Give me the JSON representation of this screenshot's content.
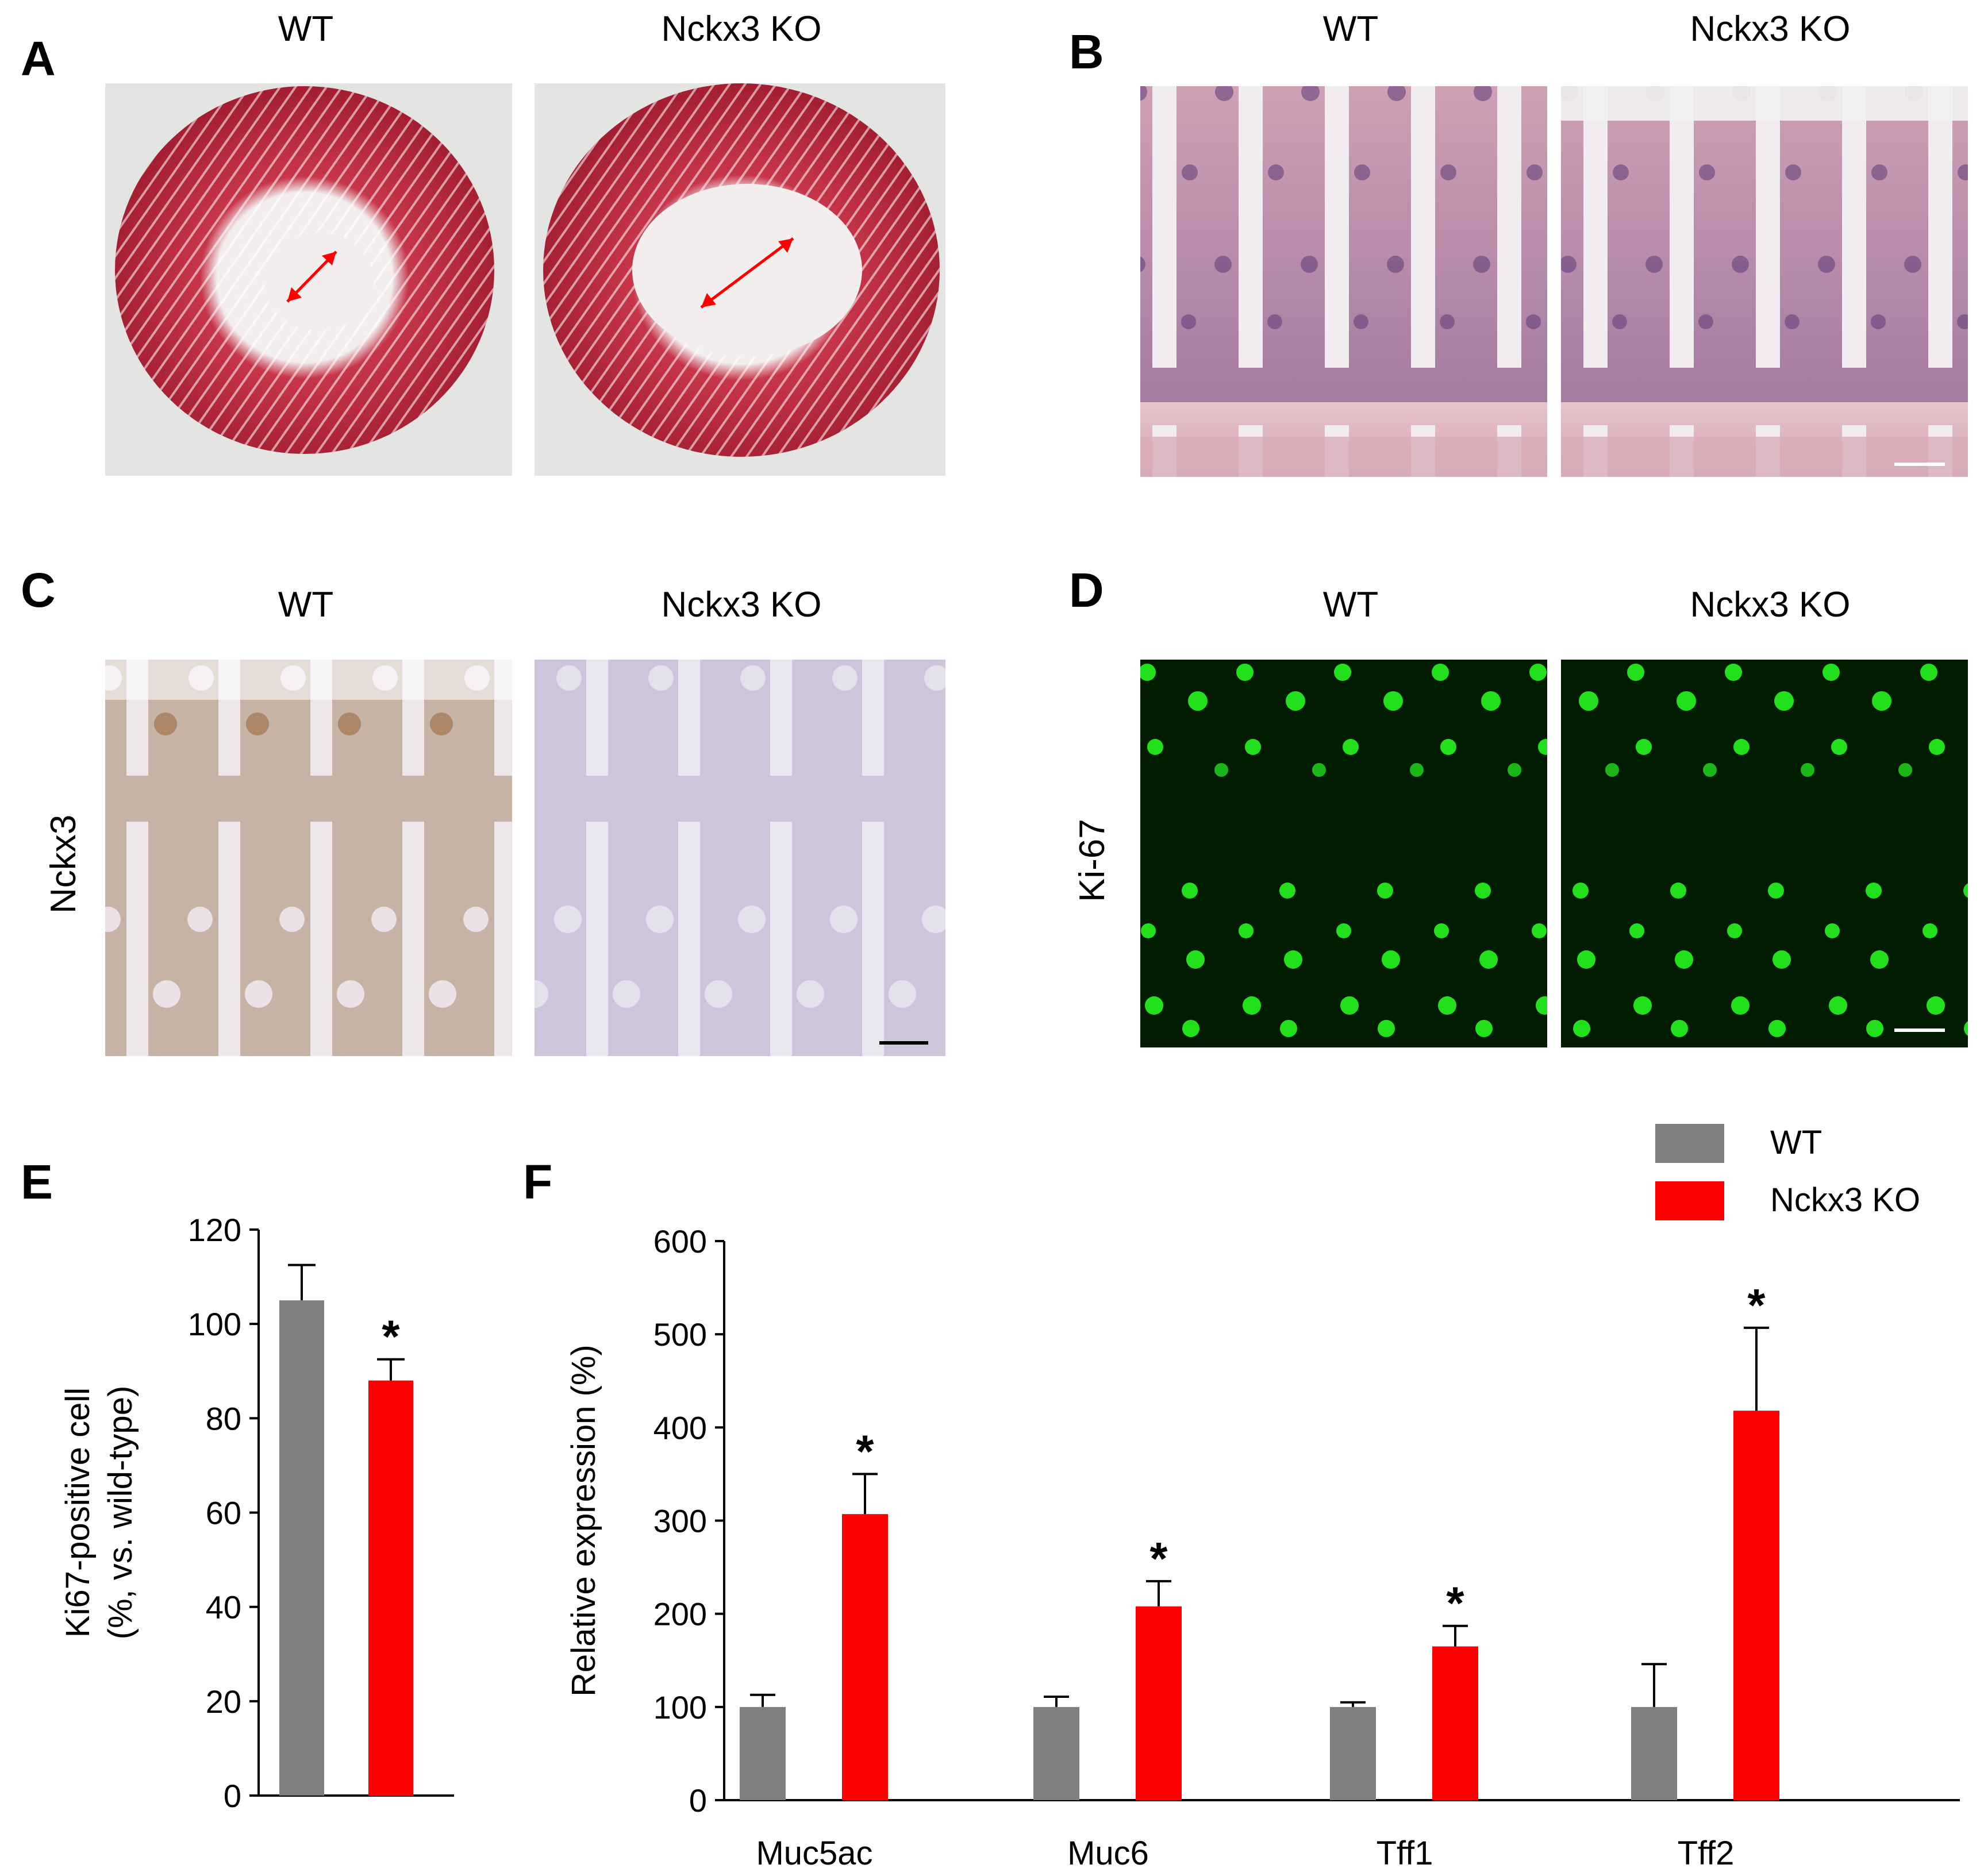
{
  "panels": {
    "A": {
      "letter": "A",
      "left_label": "WT",
      "right_label": "Nckx3 KO"
    },
    "B": {
      "letter": "B",
      "left_label": "WT",
      "right_label": "Nckx3 KO"
    },
    "C": {
      "letter": "C",
      "left_label": "WT",
      "right_label": "Nckx3 KO",
      "row_label": "Nckx3"
    },
    "D": {
      "letter": "D",
      "left_label": "WT",
      "right_label": "Nckx3 KO",
      "row_label": "Ki-67"
    },
    "E": {
      "letter": "E"
    },
    "F": {
      "letter": "F"
    }
  },
  "legend": {
    "wt": "WT",
    "ko": "Nckx3 KO"
  },
  "colors": {
    "wt": "#7f7f7f",
    "ko": "#ff0000",
    "he_tissue": "#b3233a",
    "he_background": "#e4e4e2",
    "fluor": "#22e01c"
  },
  "chart_data": [
    {
      "type": "bar",
      "panel": "E",
      "categories": [
        "WT",
        "Nckx3 KO"
      ],
      "values": [
        105,
        88
      ],
      "errors": [
        7.5,
        4.5
      ],
      "significance": [
        "",
        "*"
      ],
      "ylabel": [
        "Ki67-positive cell",
        "(%, vs. wild-type)"
      ],
      "ylim": [
        0,
        120
      ],
      "yticks": [
        0,
        20,
        40,
        60,
        80,
        100,
        120
      ],
      "grid": false
    },
    {
      "type": "bar",
      "panel": "F",
      "categories": [
        "Muc5ac",
        "Muc6",
        "Tff1",
        "Tff2"
      ],
      "series": [
        {
          "name": "WT",
          "values": [
            100,
            100,
            100,
            100
          ],
          "errors": [
            13,
            11,
            5,
            46
          ],
          "significance": [
            "",
            "",
            "",
            ""
          ]
        },
        {
          "name": "Nckx3 KO",
          "values": [
            307,
            208,
            165,
            418
          ],
          "errors": [
            43,
            27,
            22,
            89
          ],
          "significance": [
            "*",
            "*",
            "*",
            "*"
          ]
        }
      ],
      "ylabel": "Relative expression (%)",
      "ylim": [
        0,
        600
      ],
      "yticks": [
        0,
        100,
        200,
        300,
        400,
        500,
        600
      ],
      "legend_position": "top-right",
      "grid": false
    }
  ]
}
